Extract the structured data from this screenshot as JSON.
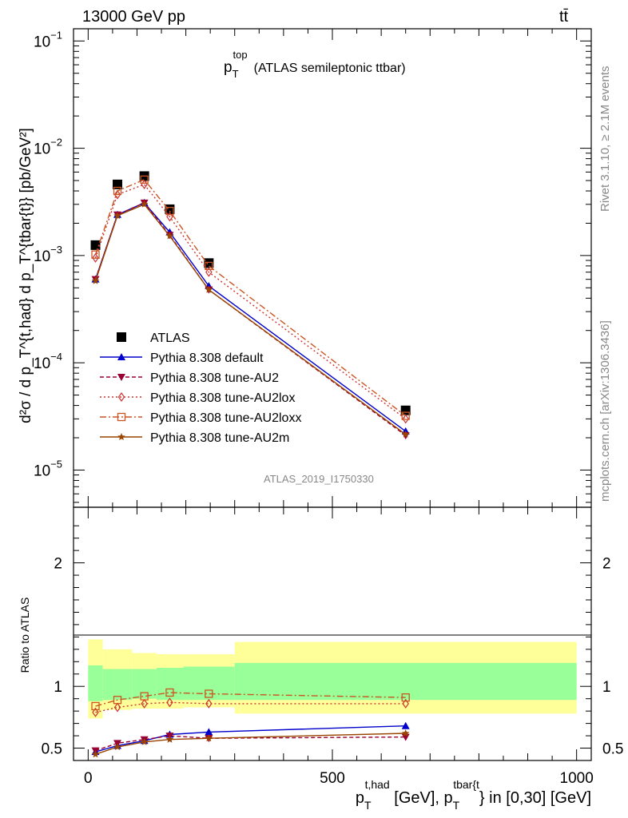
{
  "header": {
    "left": "13000 GeV pp",
    "right": "tt̄"
  },
  "chart_data": [
    {
      "type": "scatter",
      "panel": "main",
      "title": {
        "symbol": "p",
        "sup": "top",
        "sub": "T",
        "text": "(ATLAS semileptonic ttbar)"
      },
      "ylabel": "d²σ / d p_T^{t,had} d p_T^{tbar{t}} [pb/GeV²]",
      "y_scale": "log",
      "ylim": [
        4.5e-06,
        0.13
      ],
      "xlim": [
        -30,
        1030
      ],
      "y_ticks": [
        {
          "mantissa": "10",
          "exp": "−1"
        },
        {
          "mantissa": "10",
          "exp": "−2"
        },
        {
          "mantissa": "10",
          "exp": "−3"
        },
        {
          "mantissa": "10",
          "exp": "−4"
        },
        {
          "mantissa": "10",
          "exp": "−5"
        }
      ],
      "watermark": "ATLAS_2019_I1750330",
      "legend_position": "lower-left",
      "series": [
        {
          "name": "ATLAS",
          "color": "#000000",
          "marker": "square",
          "x": [
            15,
            60,
            115,
            167,
            247,
            650
          ],
          "y": [
            0.00125,
            0.0046,
            0.0055,
            0.0027,
            0.00085,
            3.6e-05
          ]
        },
        {
          "name": "Pythia 8.308 default",
          "color": "#0000cc",
          "marker": "triangle",
          "x": [
            15,
            60,
            115,
            167,
            247,
            650
          ],
          "y": [
            0.0006,
            0.0024,
            0.0031,
            0.00165,
            0.00052,
            2.3e-05
          ]
        },
        {
          "name": "Pythia 8.308 tune-AU2",
          "color": "#990033",
          "marker": "triangle-down",
          "x": [
            15,
            60,
            115,
            167,
            247,
            650
          ],
          "y": [
            0.0006,
            0.0024,
            0.0031,
            0.00155,
            0.00048,
            2.1e-05
          ]
        },
        {
          "name": "Pythia 8.308 tune-AU2lox",
          "color": "#cc3333",
          "marker": "diamond-open",
          "x": [
            15,
            60,
            115,
            167,
            247,
            650
          ],
          "y": [
            0.00095,
            0.0037,
            0.0046,
            0.0023,
            0.0007,
            3e-05
          ]
        },
        {
          "name": "Pythia 8.308 tune-AU2loxx",
          "color": "#cc5522",
          "marker": "square-open",
          "x": [
            15,
            60,
            115,
            167,
            247,
            650
          ],
          "y": [
            0.00102,
            0.004,
            0.0051,
            0.0026,
            0.0008,
            3.2e-05
          ]
        },
        {
          "name": "Pythia 8.308 tune-AU2m",
          "color": "#994400",
          "marker": "star",
          "x": [
            15,
            60,
            115,
            167,
            247,
            650
          ],
          "y": [
            0.00058,
            0.00235,
            0.003,
            0.00152,
            0.00048,
            2.15e-05
          ]
        }
      ]
    },
    {
      "type": "scatter",
      "panel": "ratio",
      "ylabel": "Ratio to ATLAS",
      "ylim": [
        0.4,
        2.45
      ],
      "xlim": [
        -30,
        1030
      ],
      "y_ticks": [
        "0.5",
        "1",
        "2"
      ],
      "x_ticks": [
        "0",
        "500",
        "1000"
      ],
      "xlabel": {
        "p1": "p",
        "sup1": "t,had",
        "sub1": "T",
        "mid": " [GeV], ",
        "p2": "p",
        "sup2": "tbar{t",
        "sub2": "T",
        "end": "} in [0,30] [GeV]"
      },
      "bands": {
        "green_color": "#99ff99",
        "yellow_color": "#ffff99",
        "bins": [
          {
            "x": [
              0,
              30
            ],
            "stat": [
              0.88,
              1.17
            ],
            "total": [
              0.74,
              1.38
            ]
          },
          {
            "x": [
              30,
              90
            ],
            "stat": [
              0.89,
              1.14
            ],
            "total": [
              0.81,
              1.3
            ]
          },
          {
            "x": [
              90,
              140
            ],
            "stat": [
              0.9,
              1.14
            ],
            "total": [
              0.82,
              1.27
            ]
          },
          {
            "x": [
              140,
              195
            ],
            "stat": [
              0.89,
              1.15
            ],
            "total": [
              0.82,
              1.26
            ]
          },
          {
            "x": [
              195,
              300
            ],
            "stat": [
              0.89,
              1.16
            ],
            "total": [
              0.83,
              1.26
            ]
          },
          {
            "x": [
              300,
              1000
            ],
            "stat": [
              0.89,
              1.19
            ],
            "total": [
              0.78,
              1.36
            ]
          }
        ]
      },
      "series": [
        {
          "name": "Pythia 8.308 default",
          "color": "#0000cc",
          "marker": "triangle",
          "x": [
            15,
            60,
            115,
            167,
            247,
            650
          ],
          "y": [
            0.47,
            0.52,
            0.56,
            0.61,
            0.63,
            0.68
          ]
        },
        {
          "name": "Pythia 8.308 tune-AU2",
          "color": "#990033",
          "marker": "triangle-down",
          "x": [
            15,
            60,
            115,
            167,
            247,
            650
          ],
          "y": [
            0.48,
            0.54,
            0.57,
            0.6,
            0.58,
            0.59
          ]
        },
        {
          "name": "Pythia 8.308 tune-AU2lox",
          "color": "#cc3333",
          "marker": "diamond-open",
          "x": [
            15,
            60,
            115,
            167,
            247,
            650
          ],
          "y": [
            0.79,
            0.83,
            0.86,
            0.87,
            0.86,
            0.86
          ]
        },
        {
          "name": "Pythia 8.308 tune-AU2loxx",
          "color": "#cc5522",
          "marker": "square-open",
          "x": [
            15,
            60,
            115,
            167,
            247,
            650
          ],
          "y": [
            0.84,
            0.89,
            0.92,
            0.95,
            0.94,
            0.91
          ]
        },
        {
          "name": "Pythia 8.308 tune-AU2m",
          "color": "#994400",
          "marker": "star",
          "x": [
            15,
            60,
            115,
            167,
            247,
            650
          ],
          "y": [
            0.45,
            0.51,
            0.55,
            0.57,
            0.58,
            0.62
          ]
        }
      ]
    }
  ],
  "side_labels": {
    "rivet": "Rivet 3.1.10, ≥ 2.1M events",
    "mcplots": "mcplots.cern.ch [arXiv:1306.3436]"
  }
}
